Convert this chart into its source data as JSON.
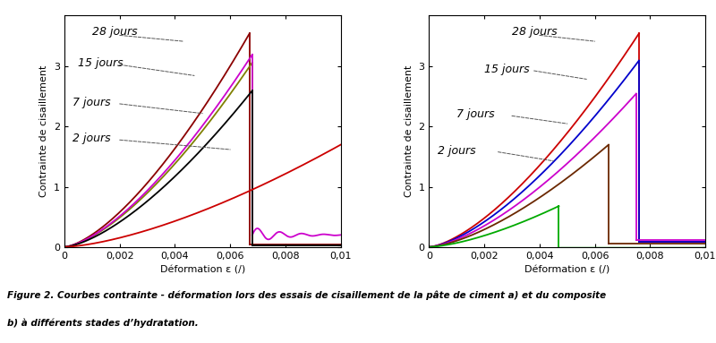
{
  "xlim": [
    0,
    0.01
  ],
  "ylim": [
    0,
    3.85
  ],
  "xlabel": "Déformation ε (/)",
  "ylabel": "Contrainte de cisaillement",
  "xticks": [
    0,
    0.002,
    0.004,
    0.006,
    0.008,
    0.01
  ],
  "xtick_labels": [
    "0",
    "0,002",
    "0,004",
    "0,006",
    "0,008",
    "0,01"
  ],
  "yticks": [
    0,
    1,
    2,
    3
  ],
  "background_color": "#ffffff",
  "tick_fontsize": 8,
  "label_fontsize": 8,
  "annotation_fontsize": 9
}
